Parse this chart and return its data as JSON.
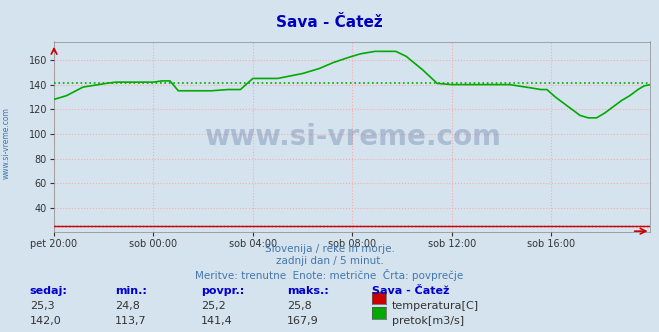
{
  "title": "Sava - Čatež",
  "bg_color": "#d5e3ef",
  "plot_bg_color": "#d5e3ef",
  "grid_color": "#ffaaaa",
  "ylim": [
    20,
    175
  ],
  "yticks": [
    40,
    60,
    80,
    100,
    120,
    140,
    160
  ],
  "xtick_labels": [
    "pet 20:00",
    "sob 00:00",
    "sob 04:00",
    "sob 08:00",
    "sob 12:00",
    "sob 16:00"
  ],
  "xtick_positions": [
    0,
    48,
    96,
    144,
    192,
    240
  ],
  "n_points": 289,
  "pretok_color": "#00aa00",
  "temp_color": "#cc0000",
  "pretok_mean": 141.4,
  "temp_mean": 25.2,
  "watermark": "www.si-vreme.com",
  "watermark_color": "#2a4d80",
  "footer_color": "#4477aa",
  "footer_line1": "Slovenija / reke in morje.",
  "footer_line2": "zadnji dan / 5 minut.",
  "footer_line3": "Meritve: trenutne  Enote: metrične  Črta: povprečje",
  "table_header_color": "#0000cc",
  "table_headers": [
    "sedaj:",
    "min.:",
    "povpr.:",
    "maks.:"
  ],
  "table_values_temp": [
    "25,3",
    "24,8",
    "25,2",
    "25,8"
  ],
  "table_values_pretok": [
    "142,0",
    "113,7",
    "141,4",
    "167,9"
  ],
  "legend_title": "Sava - Čatež",
  "legend_items": [
    "temperatura[C]",
    "pretok[m3/s]"
  ],
  "legend_colors": [
    "#cc0000",
    "#00aa00"
  ],
  "left_label": "www.si-vreme.com",
  "left_label_color": "#4477aa",
  "pretok_profile_x": [
    0,
    6,
    14,
    25,
    30,
    48,
    52,
    56,
    60,
    68,
    76,
    84,
    90,
    96,
    102,
    108,
    120,
    128,
    135,
    142,
    148,
    155,
    160,
    165,
    170,
    178,
    185,
    192,
    200,
    208,
    215,
    220,
    228,
    235,
    238,
    242,
    246,
    250,
    254,
    258,
    262,
    266,
    270,
    274,
    278,
    282,
    285,
    288
  ],
  "pretok_profile_y": [
    128,
    131,
    138,
    141,
    142,
    142,
    143,
    143,
    135,
    135,
    135,
    136,
    136,
    145,
    145,
    145,
    149,
    153,
    158,
    162,
    165,
    167,
    167,
    167,
    163,
    152,
    141,
    140,
    140,
    140,
    140,
    140,
    138,
    136,
    136,
    130,
    125,
    120,
    115,
    113,
    113,
    117,
    122,
    127,
    131,
    136,
    139,
    140
  ]
}
